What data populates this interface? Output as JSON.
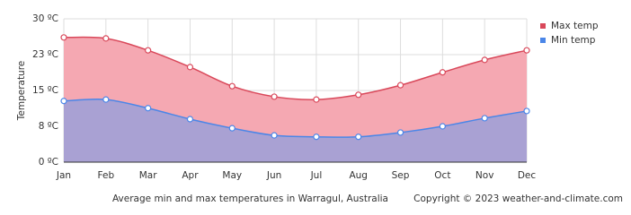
{
  "chart_data": {
    "type": "area",
    "y_label": "Temperature",
    "subtitle": "Average min and max temperatures in Warragul, Australia",
    "copyright": "Copyright © 2023  weather-and-climate.com",
    "categories": [
      "Jan",
      "Feb",
      "Mar",
      "Apr",
      "May",
      "Jun",
      "Jul",
      "Aug",
      "Sep",
      "Oct",
      "Nov",
      "Dec"
    ],
    "series": [
      {
        "name": "Max temp",
        "color": "#d9485a",
        "fill": "#f5a8b2",
        "values": [
          26.1,
          25.9,
          23.4,
          19.9,
          15.9,
          13.7,
          13.1,
          14.1,
          16.1,
          18.8,
          21.4,
          23.4
        ]
      },
      {
        "name": "Min temp",
        "color": "#4a86e8",
        "fill": "#a9a1d3",
        "values": [
          12.8,
          13.1,
          11.3,
          9.0,
          7.1,
          5.6,
          5.3,
          5.3,
          6.2,
          7.5,
          9.2,
          10.7
        ]
      }
    ],
    "ylim": [
      0,
      30
    ],
    "yticks": [
      {
        "value": 0,
        "label": "0 ºC"
      },
      {
        "value": 7.5,
        "label": "8 ºC"
      },
      {
        "value": 15,
        "label": "15 ºC"
      },
      {
        "value": 22.5,
        "label": "23 ºC"
      },
      {
        "value": 30,
        "label": "30 ºC"
      }
    ],
    "grid": true,
    "legend": "top-right"
  }
}
